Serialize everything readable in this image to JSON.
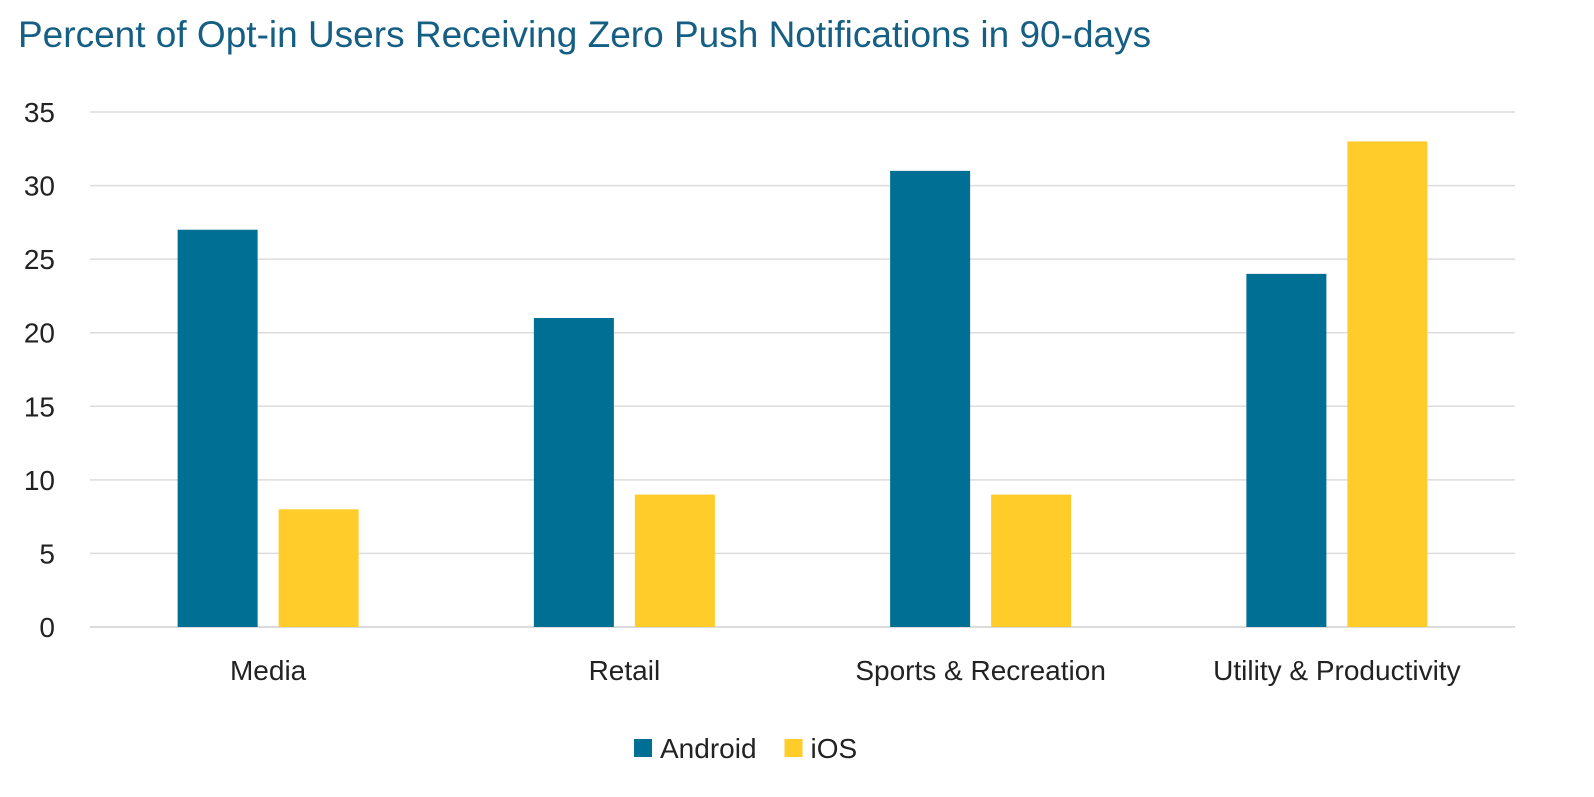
{
  "chart_data": {
    "type": "bar",
    "title": "Percent of Opt-in Users Receiving Zero Push Notifications in 90-days",
    "xlabel": "",
    "ylabel": "",
    "categories": [
      "Media",
      "Retail",
      "Sports & Recreation",
      "Utility & Productivity"
    ],
    "series": [
      {
        "name": "Android",
        "color": "#006f94",
        "values": [
          27,
          21,
          31,
          24
        ]
      },
      {
        "name": "iOS",
        "color": "#ffcc29",
        "values": [
          8,
          9,
          9,
          33
        ]
      }
    ],
    "ylim": [
      0,
      35
    ],
    "yticks": [
      "0",
      "5",
      "10",
      "15",
      "20",
      "25",
      "30",
      "35"
    ],
    "grid": true,
    "legend": "bottom-center"
  }
}
